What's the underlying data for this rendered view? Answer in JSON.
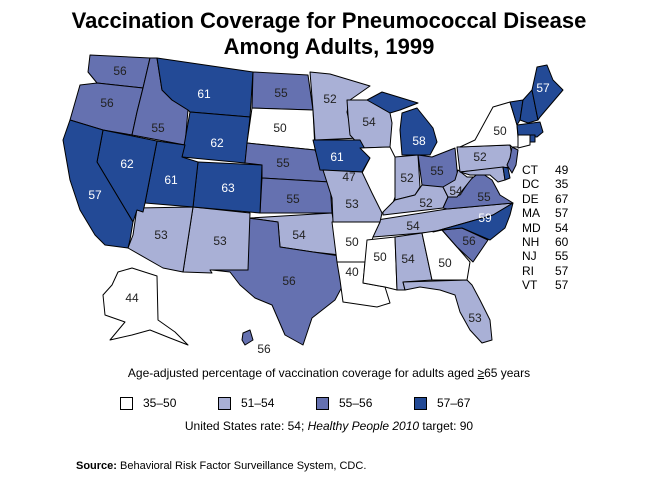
{
  "title_line1": "Vaccination Coverage for Pneumococcal Disease",
  "title_line2": "Among Adults, 1999",
  "caption_prefix": "Age-adjusted percentage of vaccination coverage for adults aged ",
  "caption_ge": "≥",
  "caption_suffix": "65 years",
  "legend": [
    {
      "label": "35–50",
      "color": "#ffffff"
    },
    {
      "label": "51–54",
      "color": "#a9b0d6"
    },
    {
      "label": "55–56",
      "color": "#6571b0"
    },
    {
      "label": "57–67",
      "color": "#234a96"
    }
  ],
  "rate_prefix": "United States rate: 54; ",
  "rate_italic": "Healthy People 2010",
  "rate_suffix": " target: 90",
  "source_label": "Source:",
  "source_text": " Behavioral Risk Factor Surveillance System, CDC.",
  "small_states": [
    {
      "state": "CT",
      "value": "49"
    },
    {
      "state": "DC",
      "value": "35"
    },
    {
      "state": "DE",
      "value": "67"
    },
    {
      "state": "MA",
      "value": "57"
    },
    {
      "state": "MD",
      "value": "54"
    },
    {
      "state": "NH",
      "value": "60"
    },
    {
      "state": "NJ",
      "value": "55"
    },
    {
      "state": "RI",
      "value": "57"
    },
    {
      "state": "VT",
      "value": "57"
    }
  ],
  "states": {
    "WA": 56,
    "OR": 56,
    "ID": 55,
    "MT": 61,
    "WY": 62,
    "ND": 55,
    "SD": 50,
    "NE": 55,
    "KS": 55,
    "CO": 63,
    "UT": 61,
    "NV": 62,
    "CA": 57,
    "AZ": 53,
    "NM": 53,
    "OK": 54,
    "TX": 56,
    "AK": 44,
    "HI": 56,
    "MN": 52,
    "WI": 54,
    "MI": 58,
    "IA": 61,
    "IL": 47,
    "IN": 52,
    "OH": 55,
    "KY": 52,
    "WV": 54,
    "VA": 55,
    "NC": 59,
    "SC": 56,
    "TN": 54,
    "MO": 53,
    "AR": 50,
    "LA": 40,
    "MS": 50,
    "AL": 54,
    "GA": 50,
    "FL": 53,
    "PA": 52,
    "NY": 50,
    "ME": 57,
    "VT": 57,
    "NH": 60,
    "MA": 57,
    "CT": 49,
    "RI": 57,
    "NJ": 55,
    "DE": 67,
    "MD": 54
  }
}
